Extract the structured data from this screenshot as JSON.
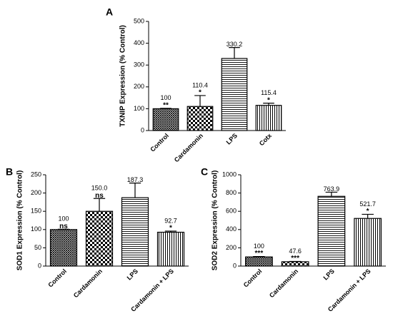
{
  "chart_data": [
    {
      "type": "bar",
      "panel_label": "A",
      "ylabel": "TXNIP Expression (% Control)",
      "categories": [
        "Control",
        "Cardamonin",
        "LPS",
        "Cotx"
      ],
      "values": [
        100,
        110.4,
        330.2,
        115.4
      ],
      "errors": [
        2,
        50,
        50,
        10
      ],
      "value_labels": [
        "100",
        "110.4",
        "330.2",
        "115.4"
      ],
      "significance": [
        "**",
        "*",
        null,
        "*"
      ],
      "color": "#000000",
      "ylim": [
        0,
        500
      ],
      "yticks": [
        0,
        100,
        200,
        300,
        400,
        500
      ]
    },
    {
      "type": "bar",
      "panel_label": "B",
      "ylabel": "SOD1 Expression (% Control)",
      "categories": [
        "Control",
        "Cardamonin",
        "LPS",
        "Cardamonin + LPS"
      ],
      "values": [
        100,
        150,
        187.3,
        92.7
      ],
      "errors": [
        1,
        35,
        40,
        3
      ],
      "value_labels": [
        "100",
        "150.0",
        "187.3",
        "92.7"
      ],
      "significance": [
        "ns",
        "ns",
        null,
        "*"
      ],
      "color": "#000000",
      "ylim": [
        0,
        250
      ],
      "yticks": [
        0,
        50,
        100,
        150,
        200,
        250
      ]
    },
    {
      "type": "bar",
      "panel_label": "C",
      "ylabel": "SOD2 Expression (% Control)",
      "categories": [
        "Control",
        "Cardamonin",
        "LPS",
        "Cardamonin + LPS"
      ],
      "values": [
        100,
        47.6,
        763.9,
        521.7
      ],
      "errors": [
        5,
        3,
        45,
        45
      ],
      "value_labels": [
        "100",
        "47.6",
        "763.9",
        "521.7"
      ],
      "significance": [
        "***",
        "***",
        null,
        "*"
      ],
      "color": "#000000",
      "ylim": [
        0,
        1000
      ],
      "yticks": [
        0,
        200,
        400,
        600,
        800,
        1000
      ]
    }
  ]
}
